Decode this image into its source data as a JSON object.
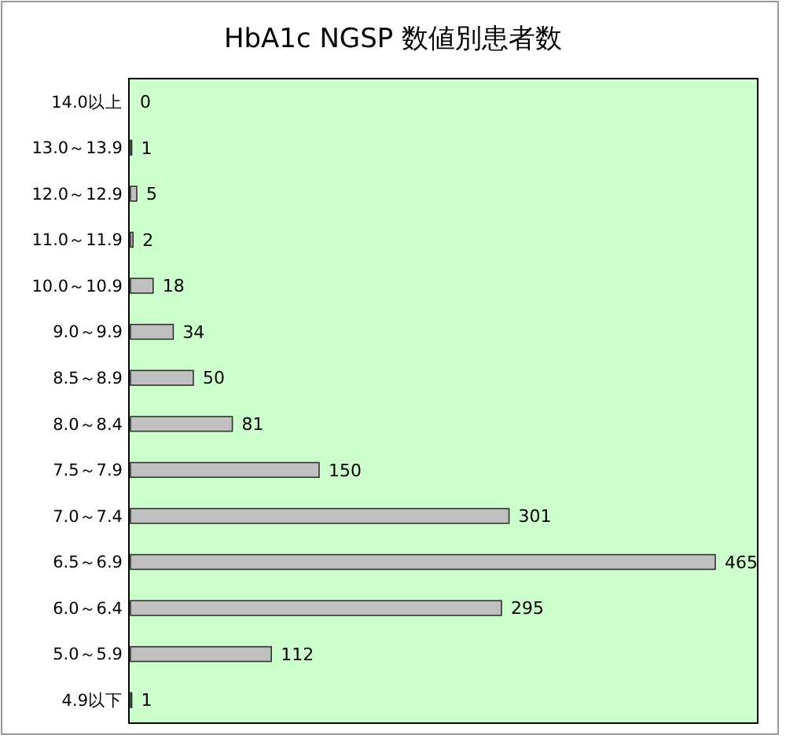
{
  "chart_data": {
    "type": "bar",
    "orientation": "horizontal",
    "title": "HbA1c NGSP 数値別患者数",
    "categories": [
      "14.0以上",
      "13.0～13.9",
      "12.0～12.9",
      "11.0～11.9",
      "10.0～10.9",
      "9.0～9.9",
      "8.5～8.9",
      "8.0～8.4",
      "7.5～7.9",
      "7.0～7.4",
      "6.5～6.9",
      "6.0～6.4",
      "5.0～5.9",
      "4.9以下"
    ],
    "values": [
      0,
      1,
      5,
      2,
      18,
      34,
      50,
      81,
      150,
      301,
      465,
      295,
      112,
      1
    ],
    "color": "#c0c0c0",
    "data_labels": true
  }
}
